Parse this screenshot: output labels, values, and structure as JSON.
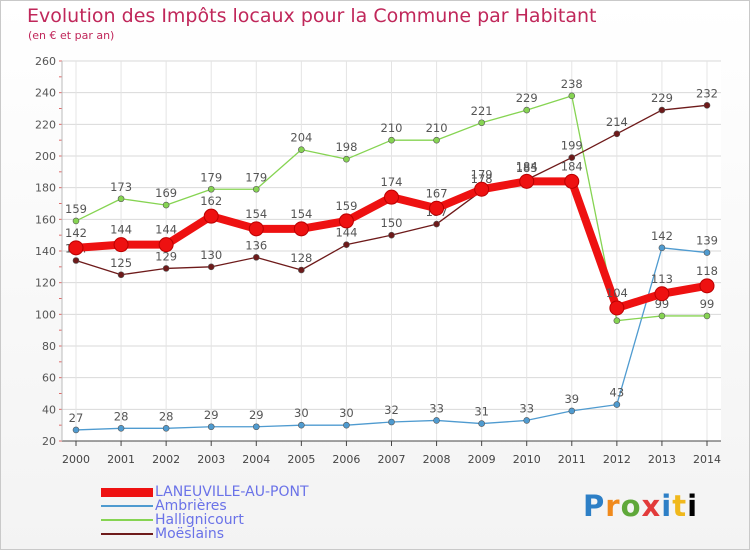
{
  "title": "Evolution des Impôts locaux pour la Commune par Habitant",
  "subtitle": "(en € et par an)",
  "logo": [
    "P",
    "r",
    "o",
    "x",
    "i",
    "t",
    "i"
  ],
  "chart_data": {
    "type": "line",
    "x": [
      "2000",
      "2001",
      "2002",
      "2003",
      "2004",
      "2005",
      "2006",
      "2007",
      "2008",
      "2009",
      "2010",
      "2011",
      "2012",
      "2013",
      "2014"
    ],
    "ylim": [
      20,
      260
    ],
    "yticks": [
      20,
      40,
      60,
      80,
      100,
      120,
      140,
      160,
      180,
      200,
      220,
      240,
      260
    ],
    "grid": true,
    "legend_position": "bottom-left",
    "series": [
      {
        "name": "Ambrières",
        "color": "#4f9bd0",
        "values": [
          27,
          28,
          28,
          29,
          29,
          30,
          30,
          32,
          33,
          31,
          33,
          39,
          43,
          142,
          139
        ],
        "labels": [
          "27",
          "28",
          "28",
          "29",
          "29",
          "30",
          "30",
          "32",
          "33",
          "31",
          "33",
          "39",
          "43",
          "142",
          "139"
        ]
      },
      {
        "name": "Hallignicourt",
        "color": "#86d452",
        "values": [
          159,
          173,
          169,
          179,
          179,
          204,
          198,
          210,
          210,
          221,
          229,
          238,
          96,
          99,
          99
        ],
        "labels": [
          "159",
          "173",
          "169",
          "179",
          "179",
          "204",
          "198",
          "210",
          "210",
          "221",
          "229",
          "238",
          "",
          "99",
          "99"
        ]
      },
      {
        "name": "Moëslains",
        "color": "#6e1a1a",
        "values": [
          134,
          125,
          129,
          130,
          136,
          128,
          144,
          150,
          157,
          178,
          185,
          199,
          214,
          229,
          232
        ],
        "labels": [
          "134",
          "125",
          "129",
          "130",
          "136",
          "128",
          "144",
          "150",
          "157",
          "178",
          "185",
          "199",
          "214",
          "229",
          "232"
        ]
      },
      {
        "name": "LANEUVILLE-AU-PONT",
        "color": "#ee1111",
        "values": [
          142,
          144,
          144,
          162,
          154,
          154,
          159,
          174,
          167,
          179,
          184,
          184,
          104,
          113,
          118
        ],
        "labels": [
          "142",
          "144",
          "144",
          "162",
          "154",
          "154",
          "159",
          "174",
          "167",
          "179",
          "184",
          "184",
          "104",
          "113",
          "118"
        ]
      }
    ]
  }
}
